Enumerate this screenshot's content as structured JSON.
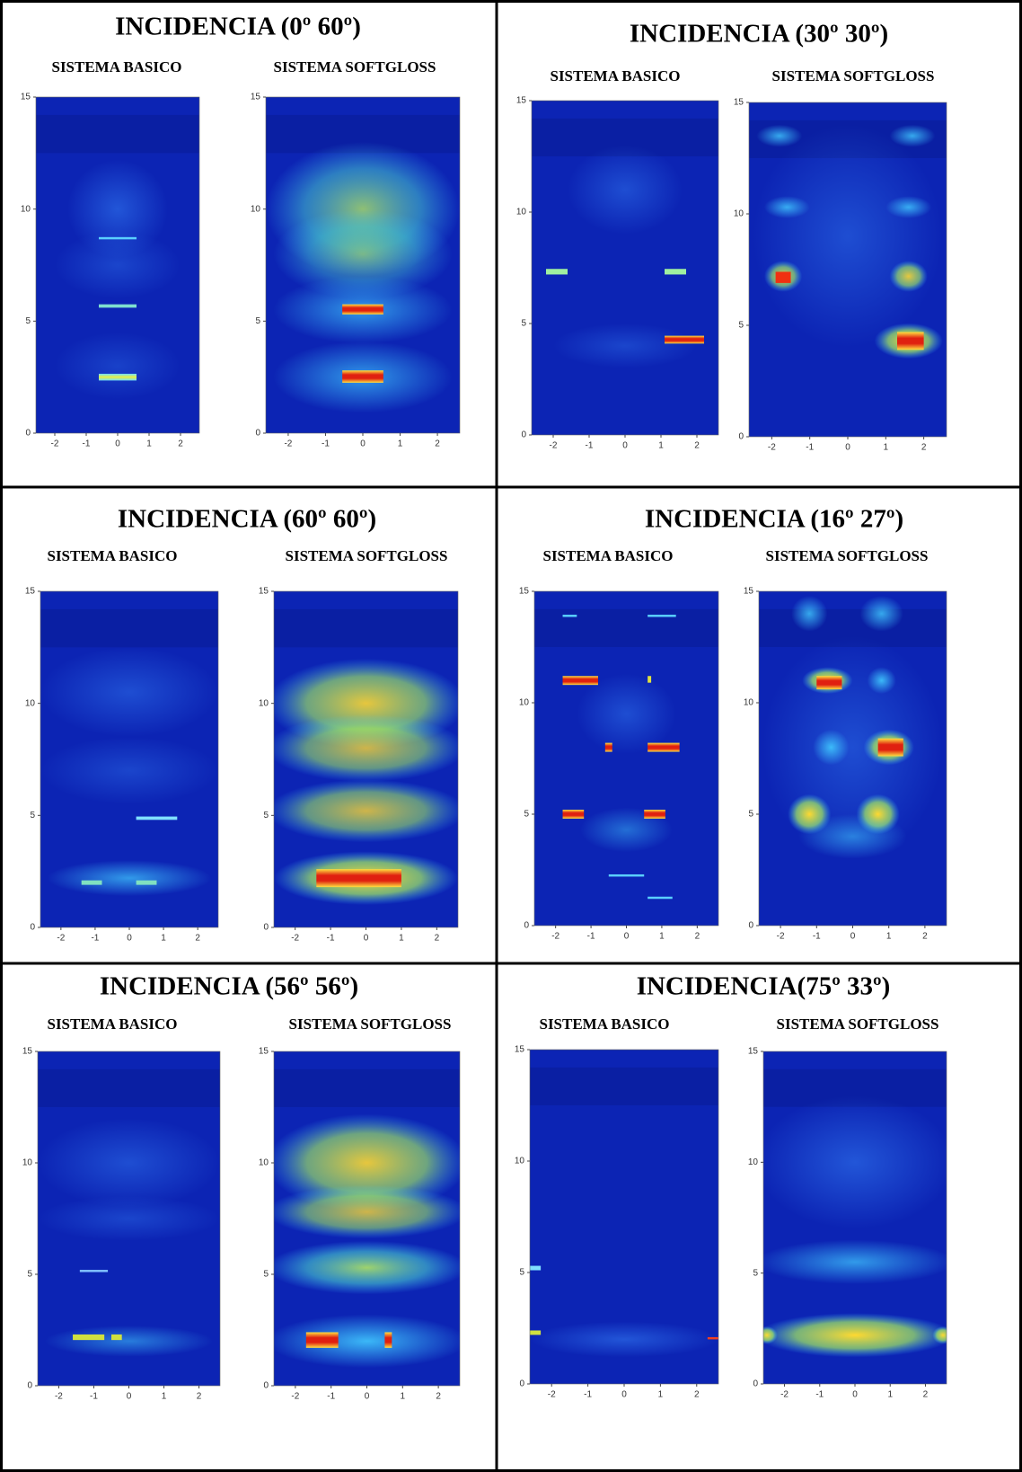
{
  "panels": [
    {
      "title": "INCIDENCIA (0º 60º)",
      "plots": [
        {
          "subtitle": "SISTEMA BASICO",
          "xlim": [
            -2.6,
            2.6
          ],
          "ylim": [
            0,
            15
          ],
          "xticks": [
            -2,
            -1,
            0,
            1,
            2
          ],
          "yticks": [
            0,
            5,
            10,
            15
          ]
        },
        {
          "subtitle": "SISTEMA SOFTGLOSS",
          "xlim": [
            -2.6,
            2.6
          ],
          "ylim": [
            0,
            15
          ],
          "xticks": [
            -2,
            -1,
            0,
            1,
            2
          ],
          "yticks": [
            0,
            5,
            10,
            15
          ]
        }
      ]
    },
    {
      "title": "INCIDENCIA (30º 30º)",
      "plots": [
        {
          "subtitle": "SISTEMA BASICO",
          "xlim": [
            -2.6,
            2.6
          ],
          "ylim": [
            0,
            15
          ],
          "xticks": [
            -2,
            -1,
            0,
            1,
            2
          ],
          "yticks": [
            0,
            5,
            10,
            15
          ]
        },
        {
          "subtitle": "SISTEMA SOFTGLOSS",
          "xlim": [
            -2.6,
            2.6
          ],
          "ylim": [
            0,
            15
          ],
          "xticks": [
            -2,
            -1,
            0,
            1,
            2
          ],
          "yticks": [
            0,
            5,
            10,
            15
          ]
        }
      ]
    },
    {
      "title": "INCIDENCIA (60º 60º)",
      "plots": [
        {
          "subtitle": "SISTEMA BASICO",
          "xlim": [
            -2.6,
            2.6
          ],
          "ylim": [
            0,
            15
          ],
          "xticks": [
            -2,
            -1,
            0,
            1,
            2
          ],
          "yticks": [
            0,
            5,
            10,
            15
          ]
        },
        {
          "subtitle": "SISTEMA SOFTGLOSS",
          "xlim": [
            -2.6,
            2.6
          ],
          "ylim": [
            0,
            15
          ],
          "xticks": [
            -2,
            -1,
            0,
            1,
            2
          ],
          "yticks": [
            0,
            5,
            10,
            15
          ]
        }
      ]
    },
    {
      "title": "INCIDENCIA (16º 27º)",
      "plots": [
        {
          "subtitle": "SISTEMA BASICO",
          "xlim": [
            -2.6,
            2.6
          ],
          "ylim": [
            0,
            15
          ],
          "xticks": [
            -2,
            -1,
            0,
            1,
            2
          ],
          "yticks": [
            0,
            5,
            10,
            15
          ]
        },
        {
          "subtitle": "SISTEMA SOFTGLOSS",
          "xlim": [
            -2.6,
            2.6
          ],
          "ylim": [
            0,
            15
          ],
          "xticks": [
            -2,
            -1,
            0,
            1,
            2
          ],
          "yticks": [
            0,
            5,
            10,
            15
          ]
        }
      ]
    },
    {
      "title": "INCIDENCIA (56º 56º)",
      "plots": [
        {
          "subtitle": "SISTEMA BASICO",
          "xlim": [
            -2.6,
            2.6
          ],
          "ylim": [
            0,
            15
          ],
          "xticks": [
            -2,
            -1,
            0,
            1,
            2
          ],
          "yticks": [
            0,
            5,
            10,
            15
          ]
        },
        {
          "subtitle": "SISTEMA SOFTGLOSS",
          "xlim": [
            -2.6,
            2.6
          ],
          "ylim": [
            0,
            15
          ],
          "xticks": [
            -2,
            -1,
            0,
            1,
            2
          ],
          "yticks": [
            0,
            5,
            10,
            15
          ]
        }
      ]
    },
    {
      "title": "INCIDENCIA(75º 33º)",
      "plots": [
        {
          "subtitle": "SISTEMA BASICO",
          "xlim": [
            -2.6,
            2.6
          ],
          "ylim": [
            0,
            15
          ],
          "xticks": [
            -2,
            -1,
            0,
            1,
            2
          ],
          "yticks": [
            0,
            5,
            10,
            15
          ]
        },
        {
          "subtitle": "SISTEMA SOFTGLOSS",
          "xlim": [
            -2.6,
            2.6
          ],
          "ylim": [
            0,
            15
          ],
          "xticks": [
            -2,
            -1,
            0,
            1,
            2
          ],
          "yticks": [
            0,
            5,
            10,
            15
          ]
        }
      ]
    }
  ]
}
